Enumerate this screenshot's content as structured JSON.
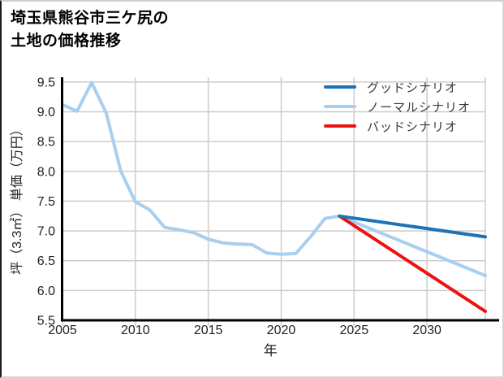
{
  "title": {
    "line1": "埼玉県熊谷市三ケ尻の",
    "line2": "土地の価格推移"
  },
  "legend": [
    {
      "id": "good",
      "label": "グッドシナリオ",
      "color": "#1b74b8"
    },
    {
      "id": "normal",
      "label": "ノーマルシナリオ",
      "color": "#a9cff0"
    },
    {
      "id": "bad",
      "label": "バッドシナリオ",
      "color": "#ee1111"
    }
  ],
  "axis_style": {
    "grid_color": "#cdcdcd",
    "spine_color": "#000000",
    "tick_label_color": "#222222",
    "axis_label_color": "#222222"
  },
  "chart_data": {
    "type": "line",
    "title": "埼玉県熊谷市三ケ尻の土地の価格推移",
    "xlabel": "年",
    "ylabel": "坪（3.3㎡） 単価（万円）",
    "xlim": [
      2005,
      2034
    ],
    "ylim": [
      5.5,
      9.58
    ],
    "x_ticks": [
      2005,
      2010,
      2015,
      2020,
      2025,
      2030
    ],
    "y_ticks": [
      "5.5",
      "6.0",
      "6.5",
      "7.0",
      "7.5",
      "8.0",
      "8.5",
      "9.0",
      "9.5"
    ],
    "grid": true,
    "legend_position": "top-right-inside",
    "series": [
      {
        "id": "historical",
        "color": "#a9cff0",
        "x": [
          2005,
          2006,
          2007,
          2008,
          2009,
          2010,
          2011,
          2012,
          2013,
          2014,
          2015,
          2016,
          2017,
          2018,
          2019,
          2020,
          2021,
          2022,
          2023,
          2024
        ],
        "y": [
          9.12,
          9.01,
          9.49,
          8.98,
          8.0,
          7.49,
          7.35,
          7.06,
          7.02,
          6.97,
          6.86,
          6.8,
          6.78,
          6.77,
          6.63,
          6.61,
          6.62,
          6.9,
          7.21,
          7.25
        ]
      },
      {
        "id": "normal",
        "name": "ノーマルシナリオ",
        "color": "#a9cff0",
        "x": [
          2024,
          2034
        ],
        "y": [
          7.25,
          6.25
        ]
      },
      {
        "id": "bad",
        "name": "バッドシナリオ",
        "color": "#ee1111",
        "x": [
          2024,
          2034
        ],
        "y": [
          7.25,
          5.65
        ]
      },
      {
        "id": "good",
        "name": "グッドシナリオ",
        "color": "#1b74b8",
        "x": [
          2024,
          2034
        ],
        "y": [
          7.25,
          6.9
        ]
      }
    ]
  }
}
